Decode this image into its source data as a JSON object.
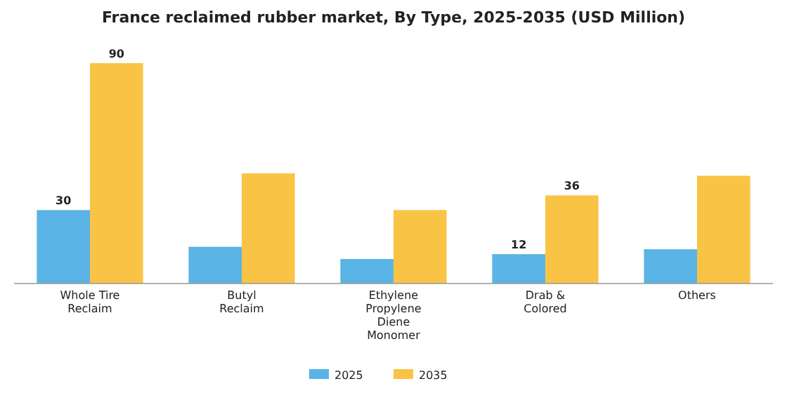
{
  "chart_data": {
    "type": "bar",
    "title": "France reclaimed rubber market, By Type, 2025-2035 (USD Million)",
    "categories": [
      "Whole Tire Reclaim",
      "Butyl Reclaim",
      "Ethylene Propylene Diene Monomer",
      "Drab & Colored",
      "Others"
    ],
    "series": [
      {
        "name": "2025",
        "color": "#5ab4e5",
        "values": [
          30,
          15,
          10,
          12,
          14
        ],
        "value_labels": [
          "30",
          null,
          null,
          "12",
          null
        ]
      },
      {
        "name": "2035",
        "color": "#f9c446",
        "values": [
          90,
          45,
          30,
          36,
          44
        ],
        "value_labels": [
          "90",
          null,
          null,
          "36",
          null
        ]
      }
    ],
    "tick_labels": "x",
    "legend": "bottom"
  }
}
